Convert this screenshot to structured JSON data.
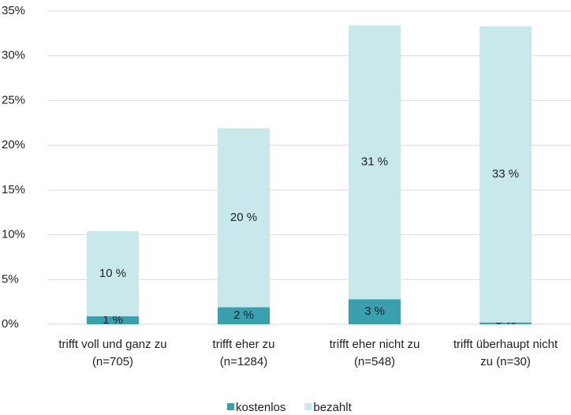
{
  "chart_data": {
    "type": "stacked_bar",
    "categories": [
      [
        "trifft voll und ganz zu",
        "(n=705)"
      ],
      [
        "trifft eher zu",
        "(n=1284)"
      ],
      [
        "trifft eher nicht zu",
        "(n=548)"
      ],
      [
        "trifft überhaupt nicht",
        "zu (n=30)"
      ]
    ],
    "series": [
      {
        "name": "kostenlos",
        "color": "#3a9fae",
        "values": [
          0.9,
          1.9,
          2.8,
          0.2
        ],
        "value_labels": [
          "1 %",
          "2 %",
          "3 %",
          "0 %"
        ]
      },
      {
        "name": "bezahlt",
        "color": "#c8e8ec",
        "values": [
          9.5,
          20.0,
          30.6,
          33.1
        ],
        "value_labels": [
          "10 %",
          "20 %",
          "31 %",
          "33 %"
        ]
      }
    ],
    "ylim": [
      0,
      35
    ],
    "yticks": [
      {
        "value": 0,
        "label": "0%"
      },
      {
        "value": 5,
        "label": "5%"
      },
      {
        "value": 10,
        "label": "10%"
      },
      {
        "value": 15,
        "label": "15%"
      },
      {
        "value": 20,
        "label": "20%"
      },
      {
        "value": 25,
        "label": "25%"
      },
      {
        "value": 30,
        "label": "30%"
      },
      {
        "value": 35,
        "label": "35%"
      }
    ],
    "grid": true,
    "legend": "bottom"
  }
}
